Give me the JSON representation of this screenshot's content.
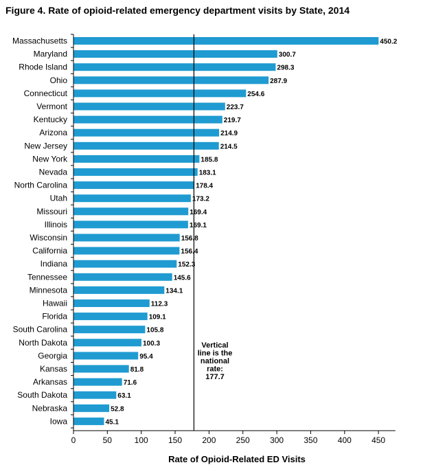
{
  "title": "Figure 4. Rate of opioid-related emergency department visits by State, 2014",
  "chart_data": {
    "type": "bar",
    "orientation": "horizontal",
    "title": "Figure 4. Rate of opioid-related emergency department visits by State, 2014",
    "xlabel": "Rate of Opioid-Related ED Visits",
    "ylabel": "",
    "xlim": [
      0,
      475
    ],
    "xticks": [
      0,
      50,
      100,
      150,
      200,
      250,
      300,
      350,
      400,
      450
    ],
    "categories": [
      "Massachusetts",
      "Maryland",
      "Rhode Island",
      "Ohio",
      "Connecticut",
      "Vermont",
      "Kentucky",
      "Arizona",
      "New Jersey",
      "New York",
      "Nevada",
      "North Carolina",
      "Utah",
      "Missouri",
      "Illinois",
      "Wisconsin",
      "California",
      "Indiana",
      "Tennessee",
      "Minnesota",
      "Hawaii",
      "Florida",
      "South Carolina",
      "North Dakota",
      "Georgia",
      "Kansas",
      "Arkansas",
      "South Dakota",
      "Nebraska",
      "Iowa"
    ],
    "values": [
      450.2,
      300.7,
      298.3,
      287.9,
      254.6,
      223.7,
      219.7,
      214.9,
      214.5,
      185.8,
      183.1,
      178.4,
      173.2,
      169.4,
      169.1,
      156.8,
      156.4,
      152.3,
      145.6,
      134.1,
      112.3,
      109.1,
      105.8,
      100.3,
      95.4,
      81.8,
      71.6,
      63.1,
      52.8,
      45.1
    ],
    "value_labels": [
      "450.2",
      "300.7",
      "298.3",
      "287.9",
      "254.6",
      "223.7",
      "219.7",
      "214.9",
      "214.5",
      "185.8",
      "183.1",
      "178.4",
      "173.2",
      "169.4",
      "169.1",
      "156.8",
      "156.4",
      "152.3",
      "145.6",
      "134.1",
      "112.3",
      "109.1",
      "105.8",
      "100.3",
      "95.4",
      "81.8",
      "71.6",
      "63.1",
      "52.8",
      "45.1"
    ],
    "bar_color": "#1f9bd1",
    "reference_line": {
      "value": 177.7,
      "label_lines": [
        "Vertical",
        "line is the",
        "national",
        "rate:",
        "177.7"
      ]
    },
    "grid": false,
    "legend": "none"
  }
}
